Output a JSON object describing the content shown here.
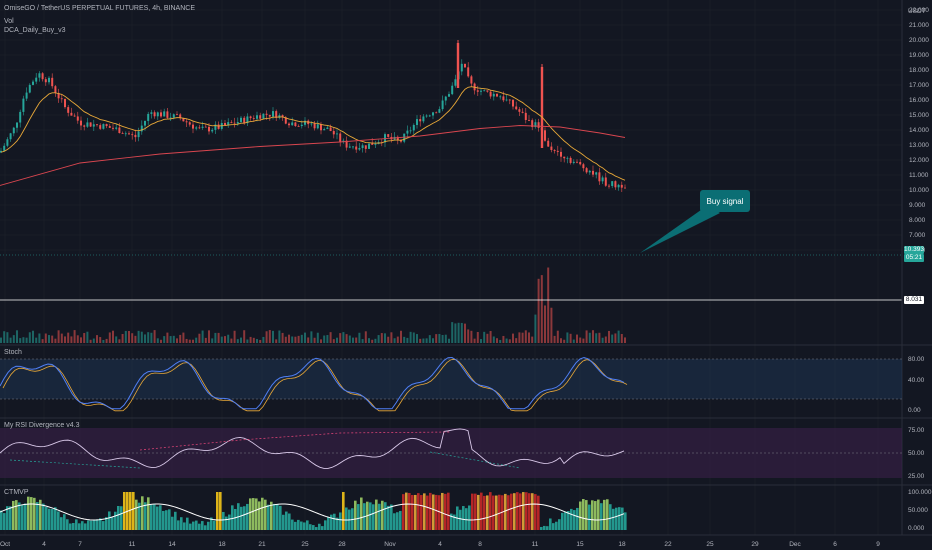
{
  "header": {
    "symbol_line": "OmiseGO / TetherUS PERPETUAL FUTURES, 4h, BINANCE",
    "indicator_vol": "Vol",
    "indicator_dca": "DCA_Daily_Buy_v3",
    "currency": "USDT"
  },
  "price_axis": {
    "labels": [
      "22.000",
      "21.000",
      "20.000",
      "19.000",
      "18.000",
      "17.000",
      "16.000",
      "15.000",
      "14.000",
      "13.000",
      "12.000",
      "11.000",
      "10.000",
      "9.000",
      "8.000",
      "7.000",
      "6.000"
    ],
    "current_price": "10.393",
    "countdown": "05:21",
    "level_line": "8.031"
  },
  "panes": {
    "stoch": {
      "label": "Stoch",
      "axis": [
        "80.00",
        "40.00",
        "0.00"
      ]
    },
    "rsi_div": {
      "label": "My RSI Divergence v4.3",
      "axis": [
        "75.00",
        "50.00",
        "25.00"
      ]
    },
    "ctmvp": {
      "label": "CTMVP",
      "axis": [
        "100.000",
        "50.000",
        "0.000"
      ]
    }
  },
  "time_axis": {
    "labels": [
      "Oct",
      "4",
      "7",
      "11",
      "14",
      "18",
      "21",
      "25",
      "28",
      "Nov",
      "4",
      "8",
      "11",
      "15",
      "18",
      "22",
      "25",
      "29",
      "Dec",
      "6",
      "9"
    ]
  },
  "annotation": {
    "text": "Buy signal"
  },
  "colors": {
    "up": "#26a69a",
    "down": "#ef5350",
    "ema_fast": "#e8a838",
    "ma_slow": "#d9464f",
    "stoch_k": "#4f7ff5",
    "stoch_band": "#1f3a5a",
    "rsi_band": "#3a1f4a",
    "callout": "#0b6e74"
  }
}
